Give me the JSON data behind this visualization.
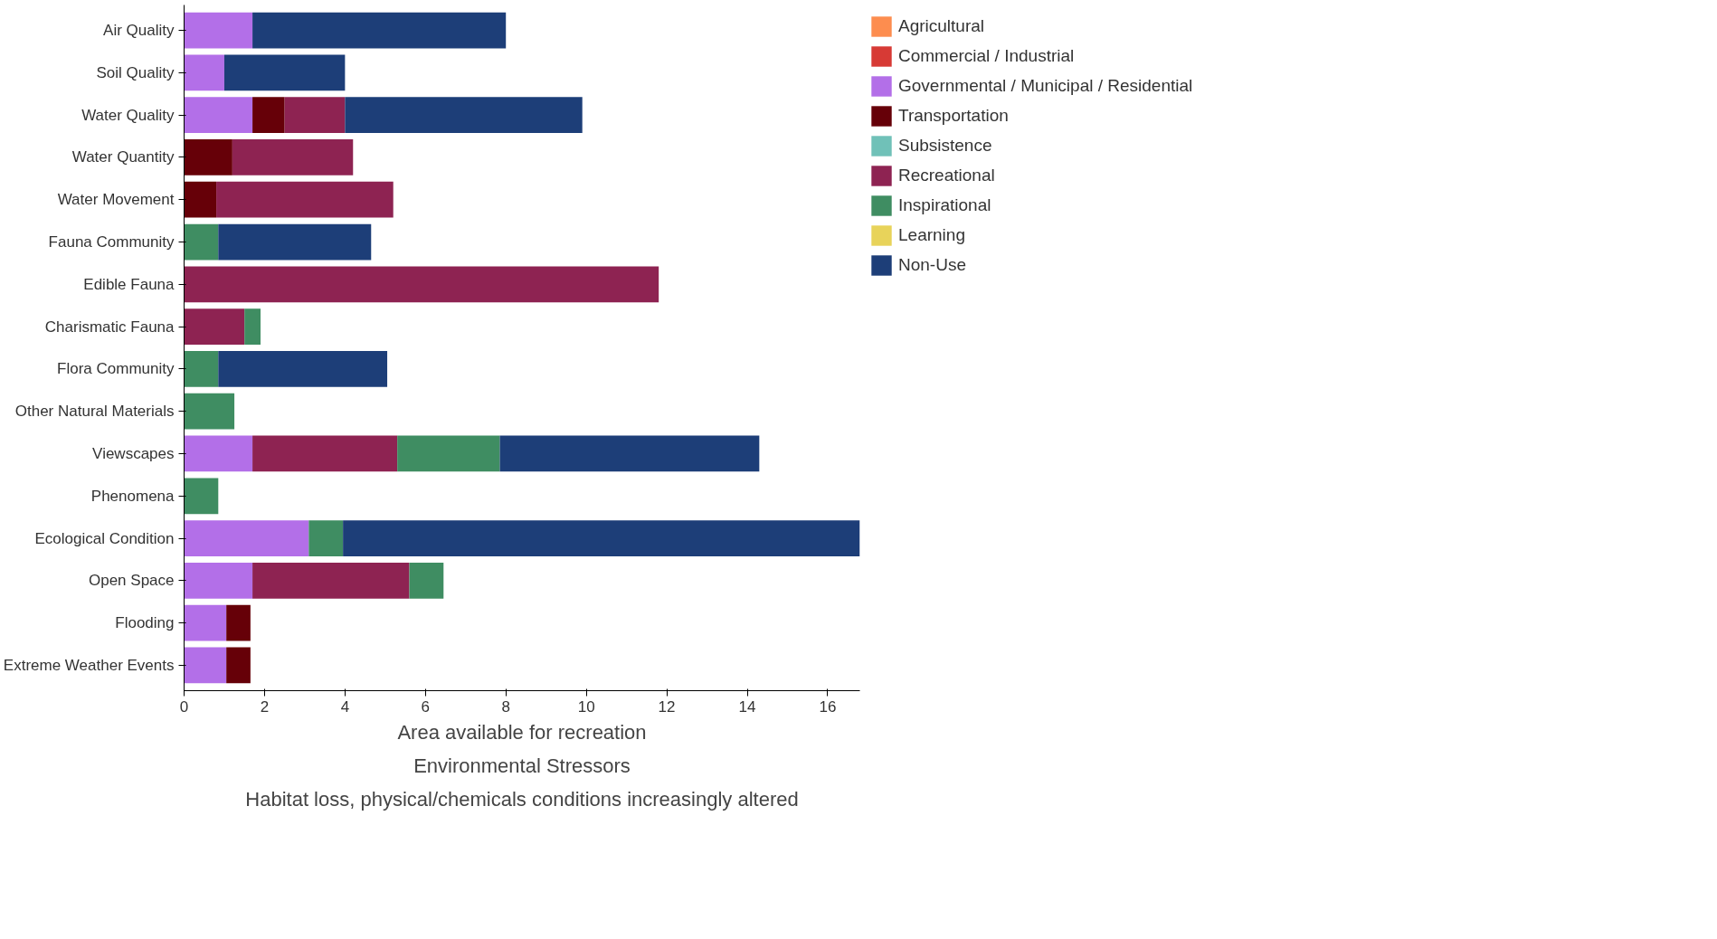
{
  "chart_data": {
    "type": "bar",
    "orientation": "horizontal",
    "stacked": true,
    "categories": [
      "Air Quality",
      "Soil Quality",
      "Water Quality",
      "Water Quantity",
      "Water Movement",
      "Fauna Community",
      "Edible Fauna",
      "Charismatic Fauna",
      "Flora Community",
      "Other Natural Materials",
      "Viewscapes",
      "Phenomena",
      "Ecological Condition",
      "Open Space",
      "Flooding",
      "Extreme Weather Events"
    ],
    "series": [
      {
        "name": "Agricultural",
        "color": "#fd8d4f",
        "values": [
          0,
          0,
          0,
          0,
          0,
          0,
          0,
          0,
          0,
          0,
          0,
          0,
          0,
          0,
          0,
          0
        ]
      },
      {
        "name": "Commercial / Industrial",
        "color": "#d73a35",
        "values": [
          0,
          0,
          0,
          0,
          0,
          0,
          0,
          0,
          0,
          0,
          0,
          0,
          0,
          0,
          0,
          0
        ]
      },
      {
        "name": "Governmental / Municipal / Residential",
        "color": "#b36fe8",
        "values": [
          1.7,
          1.0,
          1.7,
          0,
          0,
          0,
          0,
          0,
          0,
          0,
          1.7,
          0,
          3.1,
          1.7,
          1.05,
          1.05
        ]
      },
      {
        "name": "Transportation",
        "color": "#660008",
        "values": [
          0,
          0,
          0.8,
          1.2,
          0.8,
          0,
          0,
          0,
          0,
          0,
          0,
          0,
          0,
          0,
          0.6,
          0.6
        ]
      },
      {
        "name": "Subsistence",
        "color": "#70c1b8",
        "values": [
          0,
          0,
          0,
          0,
          0,
          0,
          0,
          0,
          0,
          0,
          0,
          0,
          0,
          0,
          0,
          0
        ]
      },
      {
        "name": "Recreational",
        "color": "#8e2352",
        "values": [
          0,
          0,
          1.5,
          3.0,
          4.4,
          0,
          11.8,
          1.5,
          0,
          0,
          3.6,
          0,
          0,
          3.9,
          0,
          0
        ]
      },
      {
        "name": "Inspirational",
        "color": "#3f8d62",
        "values": [
          0,
          0,
          0,
          0,
          0,
          0.85,
          0,
          0.4,
          0.85,
          1.25,
          2.55,
          0.85,
          0.85,
          0.85,
          0,
          0
        ]
      },
      {
        "name": "Learning",
        "color": "#e8d35a",
        "values": [
          0,
          0,
          0,
          0,
          0,
          0,
          0,
          0,
          0,
          0,
          0,
          0,
          0,
          0,
          0,
          0
        ]
      },
      {
        "name": "Non-Use",
        "color": "#1d3e78",
        "values": [
          6.3,
          3.0,
          5.9,
          0,
          0,
          3.8,
          0,
          0,
          4.2,
          0,
          6.45,
          0,
          12.85,
          0,
          0,
          0
        ]
      }
    ],
    "xlim": [
      0,
      16.8
    ],
    "xticks": [
      0,
      2,
      4,
      6,
      8,
      10,
      12,
      14,
      16
    ],
    "grid": false,
    "legend": "top right",
    "annotations": [
      "Area available for recreation",
      "Environmental Stressors",
      "Habitat loss, physical/chemicals conditions increasingly altered"
    ]
  }
}
